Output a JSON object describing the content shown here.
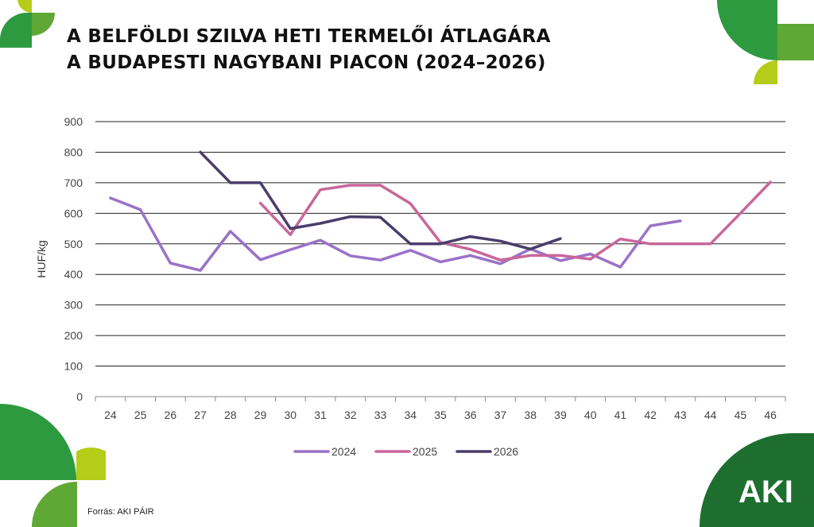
{
  "title": {
    "line1": "A BELFÖLDI SZILVA HETI TERMELŐI ÁTLAGÁRA",
    "line2": "A BUDAPESTI NAGYBANI PIACON (2024–2026)"
  },
  "source": "Forrás: AKI PÁIR",
  "logo": {
    "text": "AKI"
  },
  "colors": {
    "green_dark": "#1e6f2f",
    "green": "#2e9a3f",
    "green_mid": "#5fa835",
    "lime": "#b5cc18"
  },
  "chart_data": {
    "type": "line",
    "ylabel": "HUF/kg",
    "xlabel": "",
    "ylim": [
      0,
      900
    ],
    "yticks": [
      "0",
      "100",
      "200",
      "300",
      "400",
      "500",
      "600",
      "700",
      "800",
      "900"
    ],
    "categories": [
      "24",
      "25",
      "26",
      "27",
      "28",
      "29",
      "30",
      "31",
      "32",
      "33",
      "34",
      "35",
      "36",
      "37",
      "38",
      "39",
      "40",
      "41",
      "42",
      "43",
      "44",
      "45",
      "46"
    ],
    "grid": "horizontal",
    "legend_position": "bottom",
    "series": [
      {
        "name": "2024",
        "color": "#9a72c8",
        "values": [
          650,
          612,
          437,
          413,
          541,
          448,
          481,
          512,
          461,
          447,
          479,
          441,
          462,
          435,
          483,
          445,
          467,
          424,
          559,
          575,
          null,
          null,
          null
        ]
      },
      {
        "name": "2025",
        "color": "#c8679b",
        "values": [
          null,
          null,
          null,
          null,
          null,
          633,
          530,
          677,
          692,
          692,
          632,
          505,
          482,
          447,
          462,
          462,
          450,
          516,
          500,
          500,
          500,
          600,
          702
        ]
      },
      {
        "name": "2026",
        "color": "#4a3d6b",
        "values": [
          null,
          null,
          null,
          800,
          700,
          700,
          550,
          567,
          589,
          587,
          500,
          500,
          524,
          509,
          483,
          517,
          null,
          null,
          null,
          null,
          null,
          null,
          null
        ]
      }
    ]
  }
}
